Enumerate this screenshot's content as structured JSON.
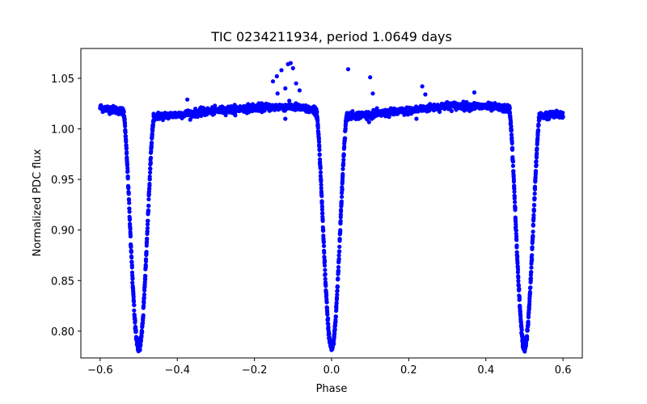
{
  "chart_data": {
    "type": "scatter",
    "title": "TIC 0234211934, period 1.0649 days",
    "xlabel": "Phase",
    "ylabel": "Normalized PDC flux",
    "xlim": [
      -0.65,
      0.65
    ],
    "ylim": [
      0.7735,
      1.0795
    ],
    "xticks": [
      -0.6,
      -0.4,
      -0.2,
      0.0,
      0.2,
      0.4,
      0.6
    ],
    "xtick_labels": [
      "−0.6",
      "−0.4",
      "−0.2",
      "0.0",
      "0.2",
      "0.4",
      "0.6"
    ],
    "yticks": [
      0.8,
      0.85,
      0.9,
      0.95,
      1.0,
      1.05
    ],
    "ytick_labels": [
      "0.80",
      "0.85",
      "0.90",
      "0.95",
      "1.00",
      "1.05"
    ],
    "grid": false,
    "marker_color": "#0000ff",
    "baseline_profile": {
      "x": [
        -0.6,
        -0.55,
        -0.52,
        -0.47,
        -0.4,
        -0.3,
        -0.2,
        -0.1,
        -0.04,
        0.04,
        0.1,
        0.2,
        0.3,
        0.4,
        0.46,
        0.53,
        0.6
      ],
      "y": [
        1.021,
        1.018,
        1.016,
        1.012,
        1.014,
        1.018,
        1.021,
        1.022,
        1.018,
        1.013,
        1.014,
        1.018,
        1.023,
        1.022,
        1.02,
        1.013,
        1.014
      ]
    },
    "eclipses": [
      {
        "center": -0.5,
        "depth": 0.232,
        "half_width": 0.04
      },
      {
        "center": 0.0,
        "depth": 0.232,
        "half_width": 0.04
      },
      {
        "center": 0.5,
        "depth": 0.232,
        "half_width": 0.04
      }
    ],
    "outliers": [
      {
        "x": -0.113,
        "y": 1.064
      },
      {
        "x": -0.106,
        "y": 1.065
      },
      {
        "x": -0.1,
        "y": 1.06
      },
      {
        "x": -0.13,
        "y": 1.058
      },
      {
        "x": -0.142,
        "y": 1.052
      },
      {
        "x": -0.152,
        "y": 1.047
      },
      {
        "x": -0.092,
        "y": 1.045
      },
      {
        "x": -0.083,
        "y": 1.038
      },
      {
        "x": -0.12,
        "y": 1.04
      },
      {
        "x": -0.14,
        "y": 1.035
      },
      {
        "x": 0.043,
        "y": 1.059
      },
      {
        "x": 0.1,
        "y": 1.051
      },
      {
        "x": 0.107,
        "y": 1.035
      },
      {
        "x": 0.235,
        "y": 1.042
      },
      {
        "x": 0.243,
        "y": 1.034
      },
      {
        "x": 0.37,
        "y": 1.036
      },
      {
        "x": -0.374,
        "y": 1.029
      },
      {
        "x": 0.22,
        "y": 1.01
      },
      {
        "x": -0.12,
        "y": 1.01
      }
    ]
  }
}
